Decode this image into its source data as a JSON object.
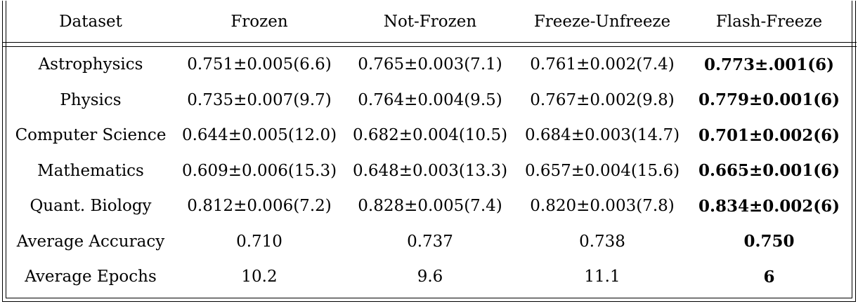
{
  "table": {
    "headers": [
      "Dataset",
      "Frozen",
      "Not-Frozen",
      "Freeze-Unfreeze",
      "Flash-Freeze"
    ],
    "rows": [
      [
        "Astrophysics",
        "0.751±0.005(6.6)",
        "0.765±0.003(7.1)",
        "0.761±0.002(7.4)",
        "0.773±.001(6)"
      ],
      [
        "Physics",
        "0.735±0.007(9.7)",
        "0.764±0.004(9.5)",
        "0.767±0.002(9.8)",
        "0.779±0.001(6)"
      ],
      [
        "Computer Science",
        "0.644±0.005(12.0)",
        "0.682±0.004(10.5)",
        "0.684±0.003(14.7)",
        "0.701±0.002(6)"
      ],
      [
        "Mathematics",
        "0.609±0.006(15.3)",
        "0.648±0.003(13.3)",
        "0.657±0.004(15.6)",
        "0.665±0.001(6)"
      ],
      [
        "Quant. Biology",
        "0.812±0.006(7.2)",
        "0.828±0.005(7.4)",
        "0.820±0.003(7.8)",
        "0.834±0.002(6)"
      ],
      [
        "Average Accuracy",
        "0.710",
        "0.737",
        "0.738",
        "0.750"
      ],
      [
        "Average Epochs",
        "10.2",
        "9.6",
        "11.1",
        "6"
      ]
    ],
    "bold_column": 4
  }
}
